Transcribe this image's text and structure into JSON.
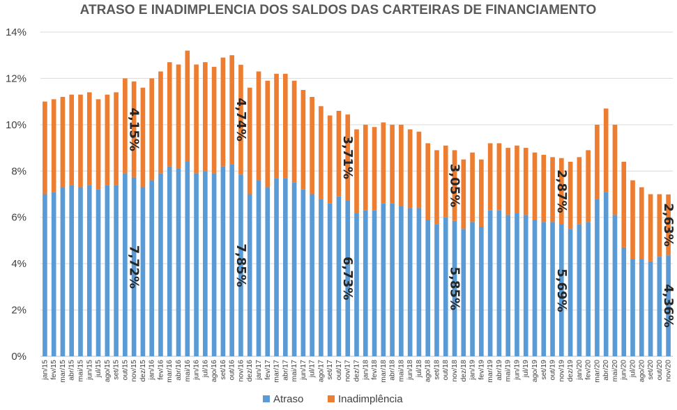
{
  "chart_data": {
    "type": "bar",
    "stacked": true,
    "title": "ATRASO E INADIMPLENCIA DOS SALDOS DAS CARTEIRAS DE FINANCIAMENTO",
    "xlabel": "",
    "ylabel": "",
    "ylim": [
      0,
      14
    ],
    "yticks": [
      "0%",
      "2%",
      "4%",
      "6%",
      "8%",
      "10%",
      "12%",
      "14%"
    ],
    "grid": true,
    "legend_position": "bottom",
    "categories": [
      "jan/15",
      "fev/15",
      "mar/15",
      "abr/15",
      "mai/15",
      "jun/15",
      "jul/15",
      "ago/15",
      "set/15",
      "out/15",
      "nov/15",
      "dez/15",
      "jan/16",
      "fev/16",
      "mar/16",
      "abr/16",
      "mai/16",
      "jun/16",
      "jul/16",
      "ago/16",
      "set/16",
      "out/16",
      "nov/16",
      "dez/16",
      "jan/17",
      "fev/17",
      "mar/17",
      "abr/17",
      "mai/17",
      "jun/17",
      "jul/17",
      "ago/17",
      "set/17",
      "out/17",
      "nov/17",
      "dez/17",
      "jan/18",
      "fev/18",
      "mar/18",
      "abr/18",
      "mai/18",
      "jun/18",
      "jul/18",
      "ago/18",
      "set/18",
      "out/18",
      "nov/18",
      "dez/18",
      "jan/19",
      "fev/19",
      "mar/19",
      "abr/19",
      "mai/19",
      "jun/19",
      "jul/19",
      "ago/19",
      "set/19",
      "out/19",
      "nov/19",
      "dez/19",
      "jan/20",
      "fev/20",
      "mar/20",
      "abr/20",
      "mai/20",
      "jun/20",
      "jul/20",
      "ago/20",
      "set/20",
      "out/20",
      "nov/20"
    ],
    "series": [
      {
        "name": "Atraso",
        "color": "#5b9bd5",
        "values": [
          7.0,
          7.1,
          7.3,
          7.4,
          7.3,
          7.4,
          7.2,
          7.4,
          7.4,
          7.9,
          7.72,
          7.3,
          7.6,
          7.9,
          8.2,
          8.1,
          8.4,
          7.9,
          8.0,
          7.9,
          8.2,
          8.3,
          7.85,
          7.0,
          7.6,
          7.3,
          7.7,
          7.7,
          7.5,
          7.2,
          7.0,
          6.8,
          6.6,
          6.9,
          6.73,
          6.2,
          6.3,
          6.3,
          6.6,
          6.6,
          6.5,
          6.4,
          6.4,
          5.9,
          5.7,
          6.0,
          5.85,
          5.5,
          5.8,
          5.6,
          6.3,
          6.3,
          6.1,
          6.2,
          6.1,
          5.9,
          5.8,
          5.8,
          5.69,
          5.5,
          5.7,
          5.8,
          6.8,
          7.1,
          6.1,
          4.7,
          4.2,
          4.2,
          4.1,
          4.3,
          4.36
        ]
      },
      {
        "name": "Inadimplência",
        "color": "#ed7d31",
        "values": [
          4.0,
          4.0,
          3.9,
          3.9,
          4.0,
          4.0,
          3.9,
          3.9,
          4.0,
          4.1,
          4.15,
          4.3,
          4.4,
          4.4,
          4.5,
          4.5,
          4.8,
          4.7,
          4.7,
          4.6,
          4.7,
          4.7,
          4.74,
          4.6,
          4.7,
          4.6,
          4.5,
          4.5,
          4.4,
          4.3,
          4.2,
          4.0,
          3.8,
          3.7,
          3.71,
          3.6,
          3.7,
          3.6,
          3.5,
          3.4,
          3.5,
          3.4,
          3.3,
          3.3,
          3.2,
          3.1,
          3.05,
          3.0,
          3.0,
          2.9,
          2.9,
          2.9,
          2.9,
          2.9,
          2.9,
          2.9,
          2.9,
          2.8,
          2.87,
          2.9,
          2.9,
          3.1,
          3.2,
          3.6,
          3.9,
          3.7,
          3.4,
          3.1,
          2.9,
          2.7,
          2.63
        ]
      }
    ],
    "annotations": [
      {
        "category": "nov/15",
        "series": "Inadimplência",
        "text": "4,15%"
      },
      {
        "category": "nov/15",
        "series": "Atraso",
        "text": "7,72%"
      },
      {
        "category": "nov/16",
        "series": "Inadimplência",
        "text": "4,74%"
      },
      {
        "category": "nov/16",
        "series": "Atraso",
        "text": "7,85%"
      },
      {
        "category": "nov/17",
        "series": "Inadimplência",
        "text": "3,71%"
      },
      {
        "category": "nov/17",
        "series": "Atraso",
        "text": "6,73%"
      },
      {
        "category": "nov/18",
        "series": "Inadimplência",
        "text": "3,05%"
      },
      {
        "category": "nov/18",
        "series": "Atraso",
        "text": "5,85%"
      },
      {
        "category": "nov/19",
        "series": "Inadimplência",
        "text": "2,87%"
      },
      {
        "category": "nov/19",
        "series": "Atraso",
        "text": "5,69%"
      },
      {
        "category": "nov/20",
        "series": "Inadimplência",
        "text": "2,63%"
      },
      {
        "category": "nov/20",
        "series": "Atraso",
        "text": "4,36%"
      }
    ]
  }
}
